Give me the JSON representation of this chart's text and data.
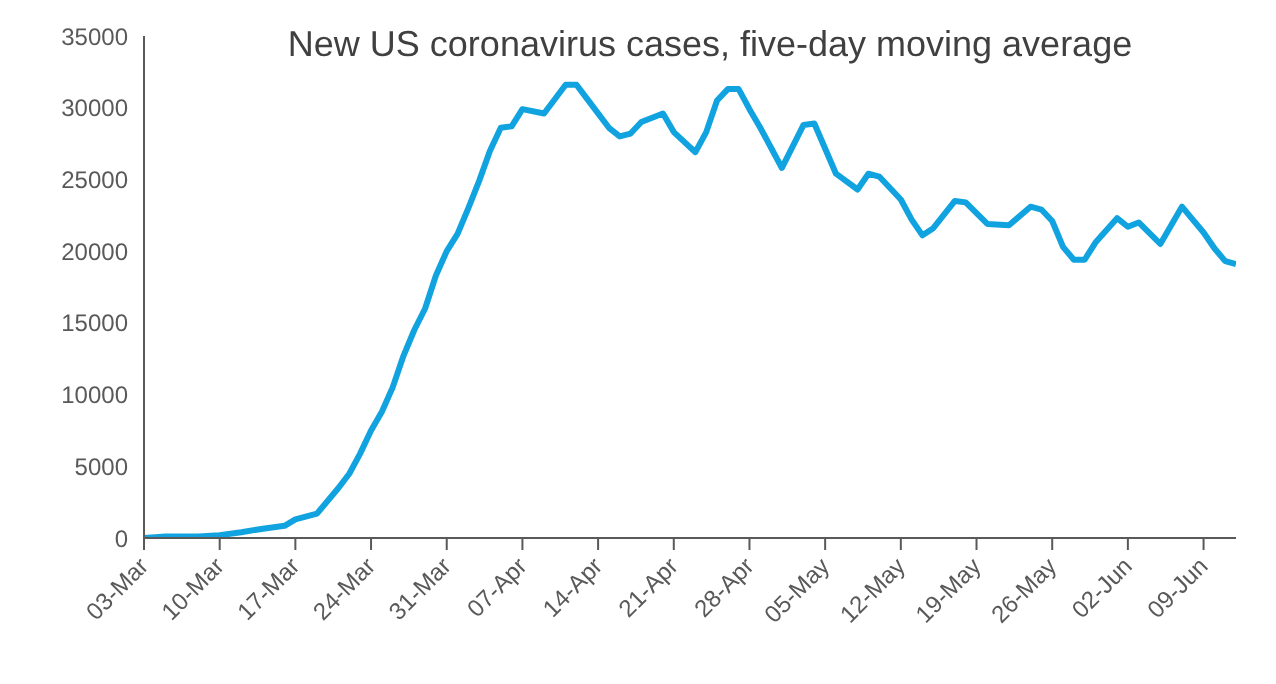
{
  "chart_data": {
    "type": "line",
    "title": "New US coronavirus cases, five-day moving average",
    "x": [
      "--03-03",
      "--03-05",
      "--03-08",
      "--03-10",
      "--03-12",
      "--03-14",
      "--03-16",
      "--03-17",
      "--03-19",
      "--03-21",
      "--03-22",
      "--03-23",
      "--03-24",
      "--03-25",
      "--03-26",
      "--03-27",
      "--03-28",
      "--03-29",
      "--03-30",
      "--03-31",
      "--04-01",
      "--04-02",
      "--04-03",
      "--04-04",
      "--04-05",
      "--04-06",
      "--04-07",
      "--04-09",
      "--04-11",
      "--04-12",
      "--04-13",
      "--04-15",
      "--04-16",
      "--04-17",
      "--04-18",
      "--04-20",
      "--04-21",
      "--04-23",
      "--04-24",
      "--04-25",
      "--04-26",
      "--04-27",
      "--04-28",
      "--04-29",
      "--05-01",
      "--05-02",
      "--05-03",
      "--05-04",
      "--05-06",
      "--05-08",
      "--05-09",
      "--05-10",
      "--05-12",
      "--05-13",
      "--05-14",
      "--05-15",
      "--05-17",
      "--05-18",
      "--05-20",
      "--05-22",
      "--05-24",
      "--05-25",
      "--05-26",
      "--05-27",
      "--05-28",
      "--05-29",
      "--05-30",
      "--06-01",
      "--06-02",
      "--06-03",
      "--06-05",
      "--06-07",
      "--06-08",
      "--06-09",
      "--06-10",
      "--06-11",
      "--06-12"
    ],
    "series": [
      {
        "color": "#11a3e0",
        "values": [
          0,
          100,
          100,
          200,
          400,
          650,
          850,
          1300,
          1700,
          3500,
          4500,
          5900,
          7500,
          8800,
          10500,
          12700,
          14500,
          16000,
          18300,
          20000,
          21200,
          23000,
          24900,
          27000,
          28600,
          28700,
          29900,
          29600,
          31600,
          31600,
          30600,
          28600,
          28000,
          28200,
          29000,
          29600,
          28300,
          26900,
          28300,
          30500,
          31300,
          31300,
          29900,
          28600,
          25800,
          27300,
          28800,
          28900,
          25400,
          24300,
          25400,
          25200,
          23600,
          22200,
          21100,
          21600,
          23500,
          23400,
          21900,
          21800,
          23100,
          22900,
          22100,
          20300,
          19400,
          19400,
          20600,
          22300,
          21700,
          22000,
          20500,
          23100,
          22200,
          21300,
          20200,
          19300,
          19100
        ]
      }
    ],
    "xlim": [
      "--03-03",
      "--06-12"
    ],
    "xticks": [
      {
        "value": "--03-03",
        "label": "03-Mar"
      },
      {
        "value": "--03-10",
        "label": "10-Mar"
      },
      {
        "value": "--03-17",
        "label": "17-Mar"
      },
      {
        "value": "--03-24",
        "label": "24-Mar"
      },
      {
        "value": "--03-31",
        "label": "31-Mar"
      },
      {
        "value": "--04-07",
        "label": "07-Apr"
      },
      {
        "value": "--04-14",
        "label": "14-Apr"
      },
      {
        "value": "--04-21",
        "label": "21-Apr"
      },
      {
        "value": "--04-28",
        "label": "28-Apr"
      },
      {
        "value": "--05-05",
        "label": "05-May"
      },
      {
        "value": "--05-12",
        "label": "12-May"
      },
      {
        "value": "--05-19",
        "label": "19-May"
      },
      {
        "value": "--05-26",
        "label": "26-May"
      },
      {
        "value": "--06-02",
        "label": "02-Jun"
      },
      {
        "value": "--06-09",
        "label": "09-Jun"
      }
    ],
    "ylim": [
      0,
      35000
    ],
    "yticks": [
      0,
      5000,
      10000,
      15000,
      20000,
      25000,
      30000,
      35000
    ],
    "grid": false,
    "legend": false,
    "marker": "none",
    "line_style": "solid"
  }
}
